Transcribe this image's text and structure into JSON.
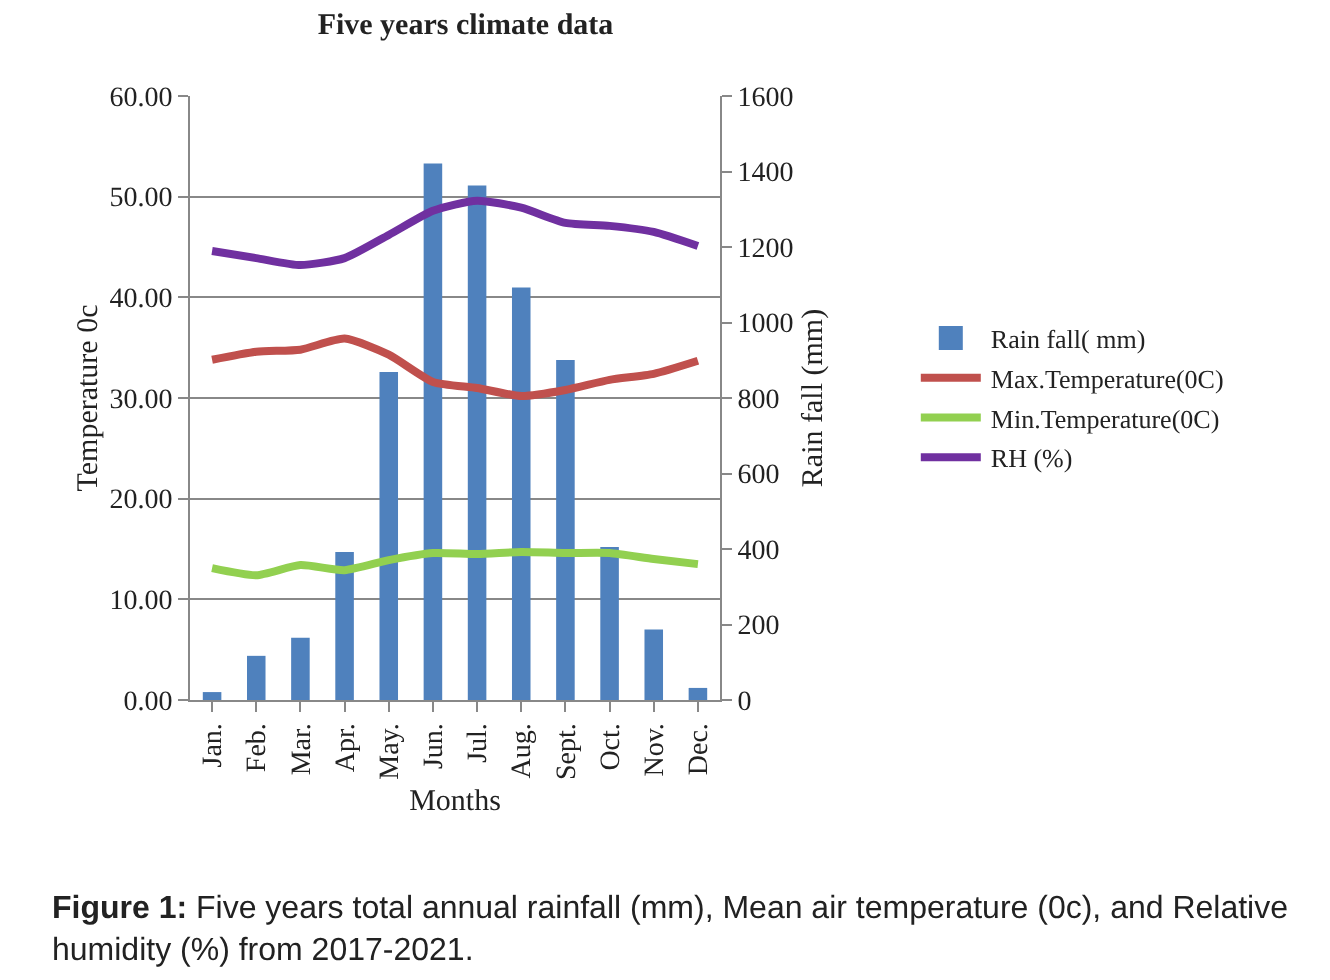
{
  "chart_data": {
    "type": "line",
    "title": "Five years climate data",
    "xlabel": "Months",
    "ylabel": "Temperature 0c",
    "y2label": "Rain fall (mm)",
    "categories": [
      "Jan.",
      "Feb.",
      "Mar.",
      "Apr.",
      "May.",
      "Jun.",
      "Jul.",
      "Aug.",
      "Sept.",
      "Oct.",
      "Nov.",
      "Dec."
    ],
    "series": [
      {
        "name": "Rain fall( mm)",
        "type": "bar",
        "axis": "y2",
        "color": "#4f81bd",
        "values": [
          21,
          117,
          165,
          392,
          869,
          1421,
          1363,
          1093,
          901,
          405,
          187,
          32
        ]
      },
      {
        "name": "Max.Temperature(0C)",
        "color": "#c0504d",
        "values": [
          33.8,
          34.6,
          34.8,
          35.9,
          34.3,
          31.6,
          31.0,
          30.2,
          30.8,
          31.8,
          32.4,
          33.7
        ]
      },
      {
        "name": "Min.Temperature(0C)",
        "color": "#92d050",
        "values": [
          13.1,
          12.4,
          13.4,
          12.9,
          13.9,
          14.6,
          14.5,
          14.7,
          14.6,
          14.6,
          14.0,
          13.5
        ]
      },
      {
        "name": "RH (%)",
        "color": "#7030a0",
        "values": [
          44.6,
          43.9,
          43.2,
          43.9,
          46.2,
          48.6,
          49.6,
          48.9,
          47.4,
          47.1,
          46.5,
          45.1
        ]
      }
    ],
    "ylim": [
      0,
      60
    ],
    "yticks": [
      {
        "value": 0,
        "label": "0.00"
      },
      {
        "value": 10,
        "label": "10.00"
      },
      {
        "value": 20,
        "label": "20.00"
      },
      {
        "value": 30,
        "label": "30.00"
      },
      {
        "value": 40,
        "label": "40.00"
      },
      {
        "value": 50,
        "label": "50.00"
      },
      {
        "value": 60,
        "label": "60.00"
      }
    ],
    "y2lim": [
      0,
      1600
    ],
    "y2ticks": [
      0,
      200,
      400,
      600,
      800,
      1000,
      1200,
      1400,
      1600
    ],
    "grid": "y",
    "legend": "right",
    "marker": "none",
    "line_style": "solid",
    "annotations": [
      "Figure 1: Five years total annual rainfall (mm), Mean air temperature (0c), and Relative humidity (%) from 2017-2021."
    ]
  }
}
